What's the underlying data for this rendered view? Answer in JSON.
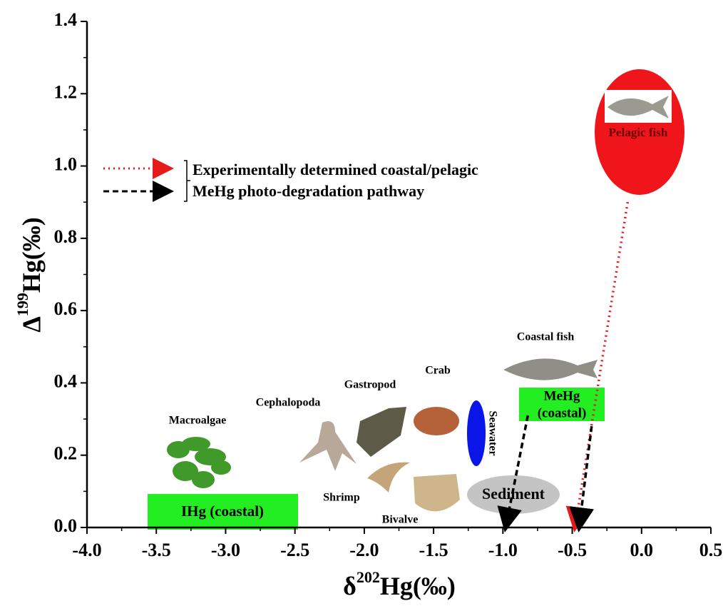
{
  "chart_data": {
    "type": "scatter",
    "x_label": {
      "symbol": "δ",
      "sup": "202",
      "rest": "Hg(‰)"
    },
    "y_label": {
      "symbol": "Δ",
      "sup": "199",
      "rest": "Hg(‰)"
    },
    "xlim": [
      -4,
      0.5
    ],
    "ylim": [
      0,
      1.4
    ],
    "xticks": [
      {
        "value": -4,
        "label": "-4.0"
      },
      -3.5,
      {
        "value": -3,
        "label": "-3.0"
      },
      -2.5,
      {
        "value": -2,
        "label": "-2.0"
      },
      -1.5,
      {
        "value": -1,
        "label": "-1.0"
      },
      -0.5,
      {
        "value": 0,
        "label": "0.0"
      },
      0.5
    ],
    "yticks": [
      {
        "value": 0,
        "label": "0.0"
      },
      0.2,
      0.4,
      0.6,
      0.8,
      {
        "value": 1,
        "label": "1.0"
      },
      1.2,
      1.4
    ],
    "pathways": [
      {
        "color": "#e8191b",
        "style": "dotted",
        "x": [
          -0.1,
          -0.48
        ],
        "y": [
          0.9,
          0.0
        ]
      },
      {
        "color": "#000000",
        "style": "dashed",
        "x": [
          -0.82,
          -0.98
        ],
        "y": [
          0.31,
          0.0
        ]
      },
      {
        "color": "#000000",
        "style": "dashed",
        "x": [
          -0.36,
          -0.45
        ],
        "y": [
          0.28,
          0.0
        ]
      }
    ],
    "legend": {
      "lines": [
        {
          "color": "#e8191b",
          "style": "dotted"
        },
        {
          "color": "#000000",
          "style": "dashed"
        }
      ],
      "text": [
        "Experimentally determined coastal/pelagic",
        "MeHg photo-degradation pathway"
      ]
    },
    "labels": {
      "macroalgae": "Macroalgae",
      "cephalopoda": "Cephalopoda",
      "gastropod": "Gastropod",
      "crab": "Crab",
      "coastal_fish": "Coastal fish",
      "shrimp": "Shrimp",
      "bivalve": "Bivalve",
      "seawater": "Seawater",
      "sediment": "Sediment",
      "pelagic_fish": "Pelagic fish",
      "mehg": [
        "MeHg",
        "(coastal)"
      ],
      "ihg": "IHg (coastal)"
    }
  }
}
